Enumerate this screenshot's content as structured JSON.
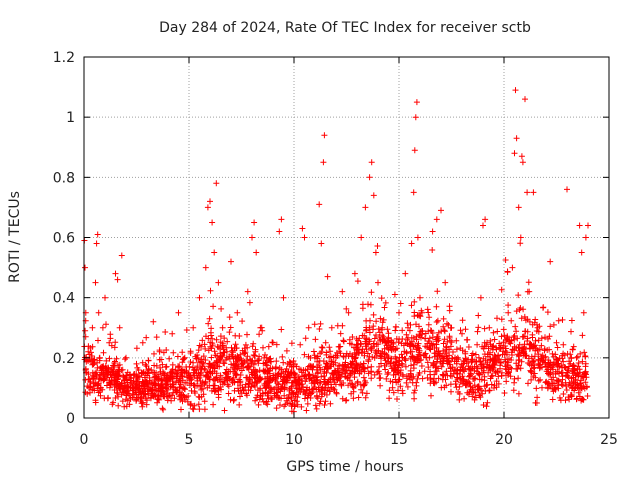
{
  "colors": {
    "points": "#ff0000",
    "grid": "#a0a0a0",
    "axis": "#000000",
    "background": "#ffffff"
  },
  "chart_data": {
    "type": "scatter",
    "title": "Day 284 of 2024, Rate Of TEC Index for receiver sctb",
    "xlabel": "GPS time / hours",
    "ylabel": "ROTI / TECUs",
    "xlim": [
      0,
      25
    ],
    "ylim": [
      0,
      1.2
    ],
    "xticks": [
      0,
      5,
      10,
      15,
      20,
      25
    ],
    "yticks": [
      0,
      0.2,
      0.4,
      0.6,
      0.8,
      1,
      1.2
    ],
    "ytick_labels": [
      "0",
      "0.2",
      "0.4",
      "0.6",
      "0.8",
      "1",
      "1.2"
    ],
    "grid": true,
    "marker": "+",
    "series": [
      {
        "name": "ROTI",
        "color": "#ff0000",
        "points": [
          [
            0.02,
            0.59
          ],
          [
            0.05,
            0.5
          ],
          [
            0.08,
            0.27
          ],
          [
            0.1,
            0.15
          ],
          [
            0.15,
            0.08
          ],
          [
            0.2,
            0.22
          ],
          [
            0.3,
            0.12
          ],
          [
            0.4,
            0.3
          ],
          [
            0.55,
            0.45
          ],
          [
            0.6,
            0.58
          ],
          [
            0.65,
            0.61
          ],
          [
            0.7,
            0.35
          ],
          [
            0.75,
            0.2
          ],
          [
            0.8,
            0.1
          ],
          [
            0.9,
            0.3
          ],
          [
            1.0,
            0.4
          ],
          [
            1.2,
            0.25
          ],
          [
            1.4,
            0.15
          ],
          [
            1.5,
            0.48
          ],
          [
            1.6,
            0.46
          ],
          [
            1.7,
            0.3
          ],
          [
            1.8,
            0.54
          ],
          [
            2.0,
            0.2
          ],
          [
            2.2,
            0.1
          ],
          [
            2.5,
            0.18
          ],
          [
            2.8,
            0.25
          ],
          [
            3.0,
            0.12
          ],
          [
            3.3,
            0.32
          ],
          [
            3.6,
            0.22
          ],
          [
            3.9,
            0.1
          ],
          [
            4.2,
            0.28
          ],
          [
            4.5,
            0.35
          ],
          [
            4.8,
            0.2
          ],
          [
            5.0,
            0.14
          ],
          [
            5.2,
            0.3
          ],
          [
            5.5,
            0.4
          ],
          [
            5.8,
            0.5
          ],
          [
            5.9,
            0.7
          ],
          [
            6.0,
            0.72
          ],
          [
            6.1,
            0.65
          ],
          [
            6.2,
            0.55
          ],
          [
            6.3,
            0.78
          ],
          [
            6.4,
            0.45
          ],
          [
            6.6,
            0.3
          ],
          [
            6.8,
            0.2
          ],
          [
            7.0,
            0.52
          ],
          [
            7.3,
            0.35
          ],
          [
            7.5,
            0.18
          ],
          [
            7.8,
            0.42
          ],
          [
            8.0,
            0.6
          ],
          [
            8.1,
            0.65
          ],
          [
            8.2,
            0.55
          ],
          [
            8.4,
            0.3
          ],
          [
            8.7,
            0.2
          ],
          [
            8.9,
            0.1
          ],
          [
            9.0,
            0.25
          ],
          [
            9.3,
            0.62
          ],
          [
            9.4,
            0.66
          ],
          [
            9.5,
            0.4
          ],
          [
            9.7,
            0.18
          ],
          [
            10.0,
            0.12
          ],
          [
            10.2,
            0.08
          ],
          [
            10.4,
            0.63
          ],
          [
            10.5,
            0.6
          ],
          [
            10.7,
            0.3
          ],
          [
            11.0,
            0.2
          ],
          [
            11.2,
            0.71
          ],
          [
            11.3,
            0.58
          ],
          [
            11.4,
            0.85
          ],
          [
            11.45,
            0.94
          ],
          [
            11.6,
            0.47
          ],
          [
            11.8,
            0.3
          ],
          [
            12.0,
            0.2
          ],
          [
            12.3,
            0.42
          ],
          [
            12.6,
            0.35
          ],
          [
            12.9,
            0.48
          ],
          [
            13.2,
            0.6
          ],
          [
            13.4,
            0.7
          ],
          [
            13.6,
            0.8
          ],
          [
            13.7,
            0.85
          ],
          [
            13.8,
            0.74
          ],
          [
            13.9,
            0.55
          ],
          [
            14.0,
            0.45
          ],
          [
            14.2,
            0.3
          ],
          [
            14.5,
            0.2
          ],
          [
            14.7,
            0.12
          ],
          [
            15.0,
            0.35
          ],
          [
            15.3,
            0.48
          ],
          [
            15.6,
            0.58
          ],
          [
            15.7,
            0.75
          ],
          [
            15.75,
            0.89
          ],
          [
            15.8,
            1.0
          ],
          [
            15.85,
            1.05
          ],
          [
            15.9,
            0.6
          ],
          [
            16.0,
            0.4
          ],
          [
            16.3,
            0.2
          ],
          [
            16.6,
            0.62
          ],
          [
            16.8,
            0.66
          ],
          [
            17.0,
            0.69
          ],
          [
            17.2,
            0.45
          ],
          [
            17.5,
            0.3
          ],
          [
            17.8,
            0.2
          ],
          [
            18.0,
            0.28
          ],
          [
            18.3,
            0.12
          ],
          [
            18.6,
            0.06
          ],
          [
            18.9,
            0.4
          ],
          [
            19.0,
            0.64
          ],
          [
            19.1,
            0.66
          ],
          [
            19.3,
            0.3
          ],
          [
            19.6,
            0.2
          ],
          [
            19.9,
            0.15
          ],
          [
            20.2,
            0.35
          ],
          [
            20.4,
            0.5
          ],
          [
            20.5,
            0.88
          ],
          [
            20.55,
            1.09
          ],
          [
            20.6,
            0.93
          ],
          [
            20.7,
            0.7
          ],
          [
            20.8,
            0.6
          ],
          [
            20.85,
            0.87
          ],
          [
            20.9,
            0.85
          ],
          [
            21.0,
            1.06
          ],
          [
            21.1,
            0.75
          ],
          [
            21.2,
            0.42
          ],
          [
            21.4,
            0.75
          ],
          [
            21.6,
            0.3
          ],
          [
            21.9,
            0.2
          ],
          [
            22.2,
            0.52
          ],
          [
            22.5,
            0.25
          ],
          [
            22.8,
            0.15
          ],
          [
            23.0,
            0.76
          ],
          [
            23.2,
            0.2
          ],
          [
            23.4,
            0.1
          ],
          [
            23.6,
            0.64
          ],
          [
            23.7,
            0.55
          ],
          [
            23.8,
            0.35
          ],
          [
            23.9,
            0.6
          ],
          [
            24.0,
            0.64
          ]
        ],
        "density_profile": {
          "hours": [
            0,
            1,
            2,
            3,
            4,
            5,
            6,
            7,
            8,
            9,
            10,
            11,
            12,
            13,
            14,
            15,
            16,
            17,
            18,
            19,
            20,
            21,
            22,
            23,
            24
          ],
          "typical": [
            0.15,
            0.14,
            0.11,
            0.1,
            0.11,
            0.12,
            0.17,
            0.16,
            0.14,
            0.13,
            0.11,
            0.13,
            0.15,
            0.18,
            0.24,
            0.17,
            0.22,
            0.21,
            0.16,
            0.14,
            0.21,
            0.23,
            0.16,
            0.14,
            0.15
          ],
          "spread": [
            0.12,
            0.11,
            0.09,
            0.09,
            0.1,
            0.11,
            0.16,
            0.14,
            0.13,
            0.12,
            0.1,
            0.12,
            0.13,
            0.16,
            0.18,
            0.14,
            0.17,
            0.16,
            0.12,
            0.13,
            0.16,
            0.16,
            0.13,
            0.12,
            0.12
          ]
        }
      }
    ]
  }
}
